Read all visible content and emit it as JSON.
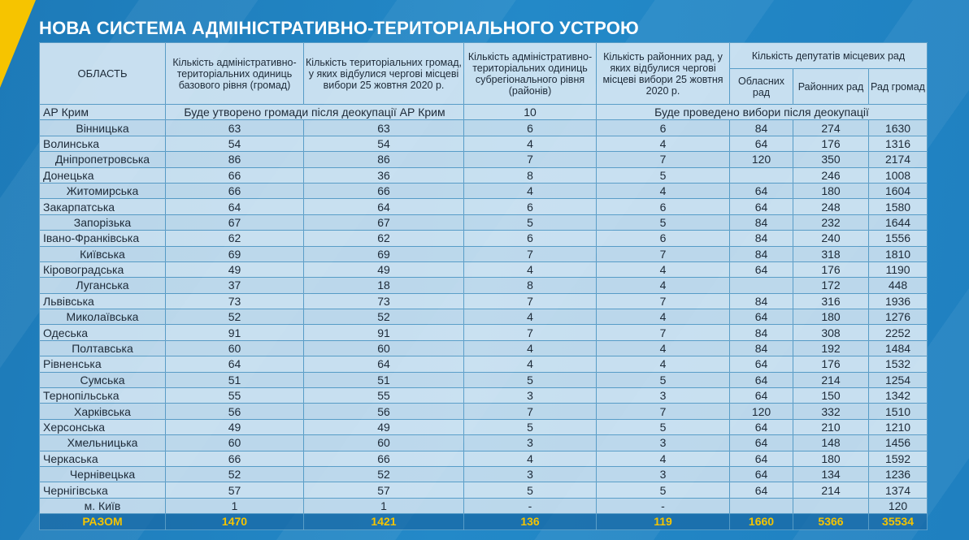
{
  "header": {
    "title": "НОВА СИСТЕМА АДМІНІСТРАТИВНО-ТЕРИТОРІАЛЬНОГО УСТРОЮ"
  },
  "table": {
    "columns": [
      "ОБЛАСТЬ",
      "Кількість адміністративно-територіальних одиниць базового рівня (громад)",
      "Кількість територіальних громад, у яких відбулися чергові місцеві вибори 25 жовтня 2020 р.",
      "Кількість адміністративно-територіальних одиниць субрегіонального рівня (районів)",
      "Кількість районних рад, у яких відбулися чергові місцеві вибори 25 жовтня 2020 р."
    ],
    "group": "Кількість депутатів місцевих рад",
    "subcolumns": [
      "Обласних рад",
      "Районних рад",
      "Рад громад"
    ],
    "rows": [
      [
        "АР Крим",
        "Буде утворено громади після деокупації АР Крим",
        10,
        "Буде проведено вибори після деокупації"
      ],
      [
        "Вінницька",
        63,
        63,
        6,
        6,
        84,
        274,
        1630
      ],
      [
        "Волинська",
        54,
        54,
        4,
        4,
        64,
        176,
        1316
      ],
      [
        "Дніпропетровська",
        86,
        86,
        7,
        7,
        120,
        350,
        2174
      ],
      [
        "Донецька",
        66,
        36,
        8,
        5,
        null,
        246,
        1008
      ],
      [
        "Житомирська",
        66,
        66,
        4,
        4,
        64,
        180,
        1604
      ],
      [
        "Закарпатська",
        64,
        64,
        6,
        6,
        64,
        248,
        1580
      ],
      [
        "Запорізька",
        67,
        67,
        5,
        5,
        84,
        232,
        1644
      ],
      [
        "Івано-Франківська",
        62,
        62,
        6,
        6,
        84,
        240,
        1556
      ],
      [
        "Київська",
        69,
        69,
        7,
        7,
        84,
        318,
        1810
      ],
      [
        "Кіровоградська",
        49,
        49,
        4,
        4,
        64,
        176,
        1190
      ],
      [
        "Луганська",
        37,
        18,
        8,
        4,
        null,
        172,
        448
      ],
      [
        "Львівська",
        73,
        73,
        7,
        7,
        84,
        316,
        1936
      ],
      [
        "Миколаївська",
        52,
        52,
        4,
        4,
        64,
        180,
        1276
      ],
      [
        "Одеська",
        91,
        91,
        7,
        7,
        84,
        308,
        2252
      ],
      [
        "Полтавська",
        60,
        60,
        4,
        4,
        84,
        192,
        1484
      ],
      [
        "Рівненська",
        64,
        64,
        4,
        4,
        64,
        176,
        1532
      ],
      [
        "Сумська",
        51,
        51,
        5,
        5,
        64,
        214,
        1254
      ],
      [
        "Тернопільська",
        55,
        55,
        3,
        3,
        64,
        150,
        1342
      ],
      [
        "Харківська",
        56,
        56,
        7,
        7,
        120,
        332,
        1510
      ],
      [
        "Херсонська",
        49,
        49,
        5,
        5,
        64,
        210,
        1210
      ],
      [
        "Хмельницька",
        60,
        60,
        3,
        3,
        64,
        148,
        1456
      ],
      [
        "Черкаська",
        66,
        66,
        4,
        4,
        64,
        180,
        1592
      ],
      [
        "Чернівецька",
        52,
        52,
        3,
        3,
        64,
        134,
        1236
      ],
      [
        "Чернігівська",
        57,
        57,
        5,
        5,
        64,
        214,
        1374
      ],
      [
        "м. Київ",
        1,
        1,
        "-",
        "-",
        null,
        null,
        120
      ]
    ],
    "total": [
      "РАЗОМ",
      1470,
      1421,
      136,
      119,
      1660,
      5366,
      35534
    ]
  }
}
